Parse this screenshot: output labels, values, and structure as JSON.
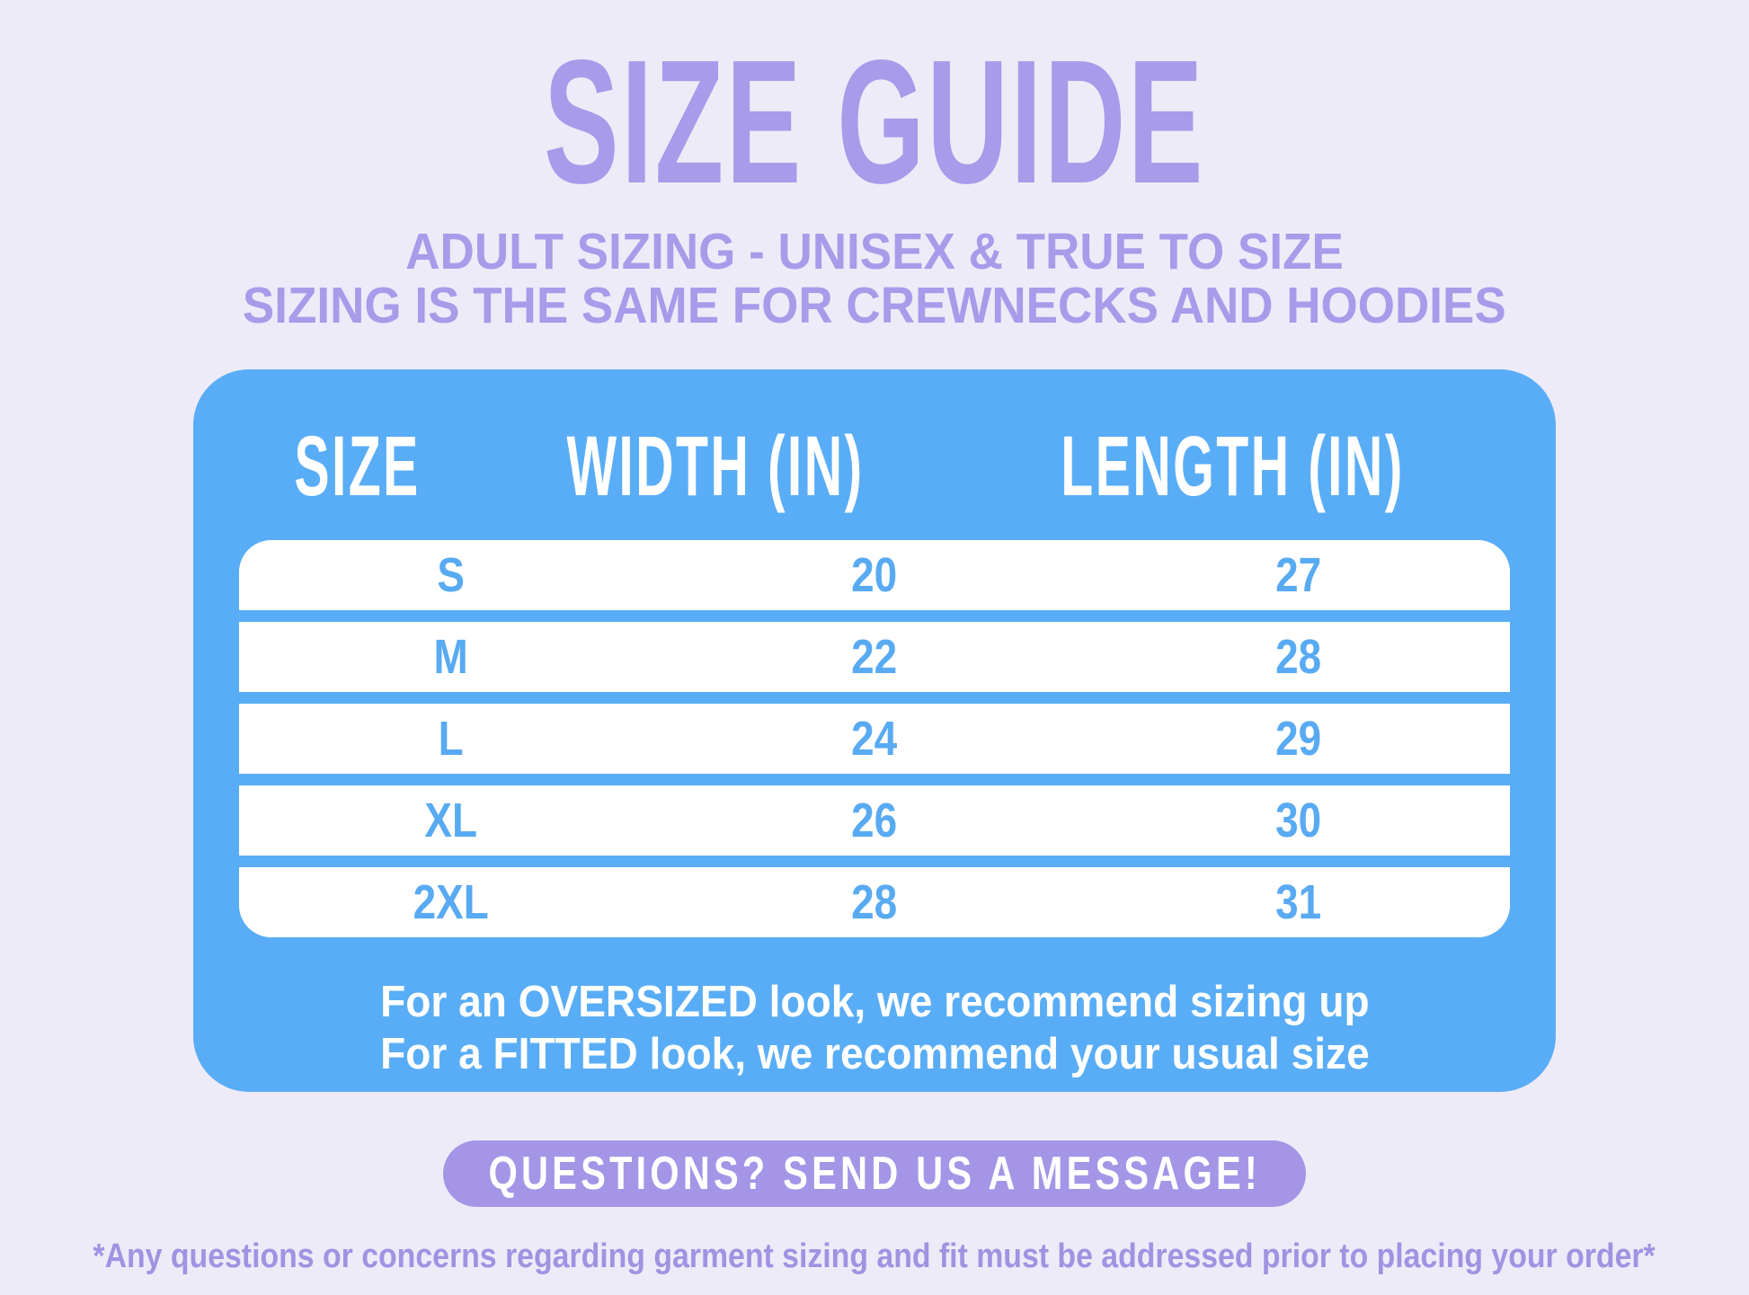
{
  "title": "SIZE GUIDE",
  "subtitle": {
    "line1": "ADULT SIZING - UNISEX & TRUE TO SIZE",
    "line2": "SIZING IS THE SAME FOR CREWNECKS AND HOODIES"
  },
  "table": {
    "headers": [
      "SIZE",
      "WIDTH (IN)",
      "LENGTH (IN)"
    ],
    "rows": [
      {
        "size": "S",
        "width": "20",
        "length": "27"
      },
      {
        "size": "M",
        "width": "22",
        "length": "28"
      },
      {
        "size": "L",
        "width": "24",
        "length": "29"
      },
      {
        "size": "XL",
        "width": "26",
        "length": "30"
      },
      {
        "size": "2XL",
        "width": "28",
        "length": "31"
      }
    ]
  },
  "card_note": {
    "line1": "For an OVERSIZED look, we recommend sizing up",
    "line2": "For a FITTED look, we recommend your usual size"
  },
  "cta": {
    "label": "QUESTIONS? SEND US A MESSAGE!"
  },
  "disclaimer": "*Any questions or concerns regarding garment sizing and fit must be addressed prior to placing your order*",
  "colors": {
    "background": "#eeebf8",
    "accent_purple": "#a79bea",
    "card_blue": "#59adf6",
    "row_text_blue": "#58aaf2",
    "pill_purple": "#a495e7",
    "disclaimer_purple": "#a192e2",
    "white": "#ffffff"
  }
}
